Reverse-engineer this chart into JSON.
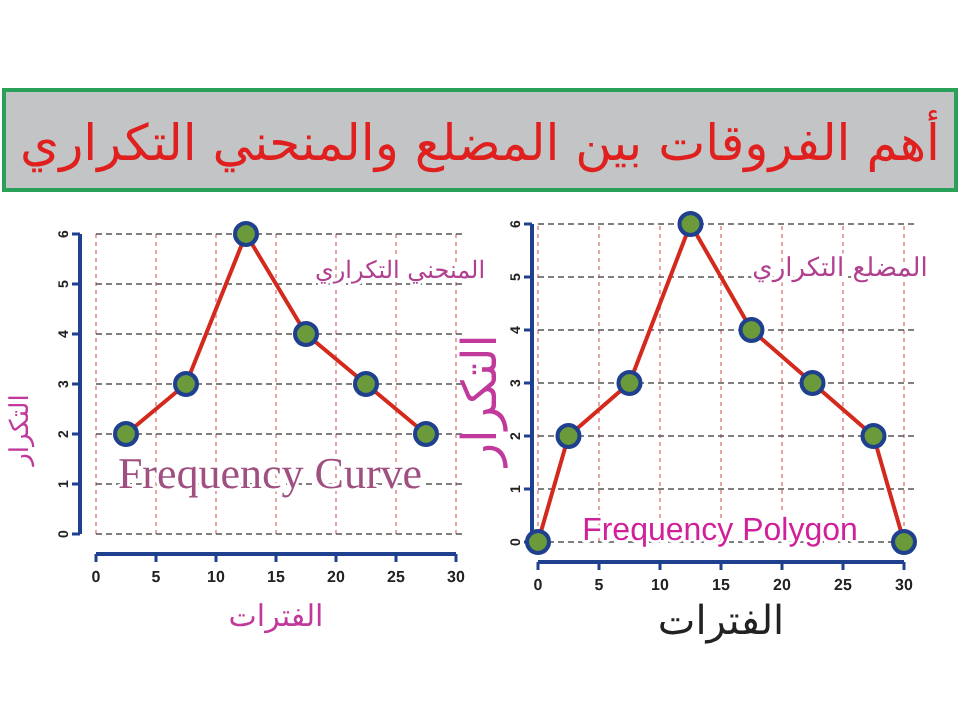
{
  "chart_data": [
    {
      "type": "line",
      "title": "أهم الفروقات بين المضلع والمنحني التكراري",
      "xlabel": "الفترات",
      "ylabel": "التكرار",
      "x": [
        2.5,
        7.5,
        12.5,
        17.5,
        22.5,
        27.5
      ],
      "series": [
        {
          "color": "#d42a1e",
          "values": [
            2,
            3,
            6,
            4,
            3,
            2
          ]
        }
      ],
      "xlim": [
        0,
        30
      ],
      "xticks": [
        0,
        5,
        10,
        15,
        20,
        25,
        30
      ],
      "ylim": [
        0,
        6
      ],
      "yticks": [
        0,
        1,
        2,
        3,
        4,
        5,
        6
      ],
      "grid": true,
      "marker": "circle",
      "line_style": "solid",
      "annotations": [
        "المنحني التكراري",
        "Frequency Curve"
      ]
    },
    {
      "type": "line",
      "xlabel": "الفترات",
      "ylabel": "التكرار",
      "x": [
        0,
        2.5,
        7.5,
        12.5,
        17.5,
        22.5,
        27.5,
        30
      ],
      "series": [
        {
          "color": "#d42a1e",
          "values": [
            0,
            2,
            3,
            6,
            4,
            3,
            2,
            0
          ]
        }
      ],
      "xlim": [
        0,
        30
      ],
      "xticks": [
        0,
        5,
        10,
        15,
        20,
        25,
        30
      ],
      "ylim": [
        0,
        6
      ],
      "yticks": [
        0,
        1,
        2,
        3,
        4,
        5,
        6
      ],
      "grid": true,
      "marker": "circle",
      "line_style": "solid",
      "annotations": [
        "المضلع التكراري",
        "Frequency Polygon"
      ]
    }
  ]
}
